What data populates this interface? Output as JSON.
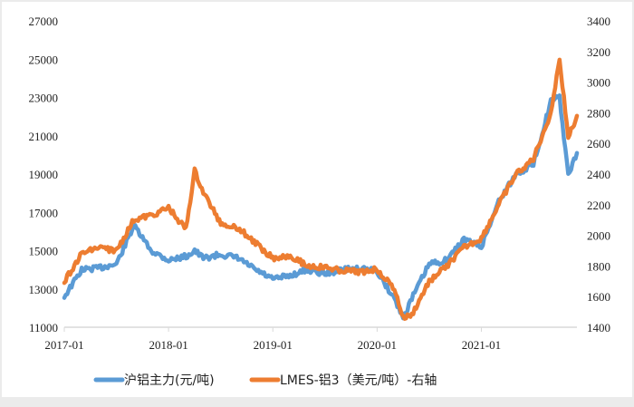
{
  "chart_data": {
    "type": "line",
    "title": "",
    "xlabel": "",
    "ylabel_left": "",
    "ylabel_right": "",
    "x_ticks": [
      "2017-01",
      "2018-01",
      "2019-01",
      "2020-01",
      "2021-01"
    ],
    "y_left": {
      "ticks": [
        11000,
        13000,
        15000,
        17000,
        19000,
        21000,
        23000,
        25000,
        27000
      ],
      "ylim": [
        11000,
        27000
      ]
    },
    "y_right": {
      "ticks": [
        1400,
        1600,
        1800,
        2000,
        2200,
        2400,
        2600,
        2800,
        3000,
        3200,
        3400
      ],
      "ylim": [
        1400,
        3400
      ]
    },
    "grid": false,
    "legend_position": "bottom",
    "x": [
      "2017-01",
      "2017-03",
      "2017-05",
      "2017-07",
      "2017-09",
      "2017-11",
      "2018-01",
      "2018-03",
      "2018-04",
      "2018-05",
      "2018-07",
      "2018-09",
      "2018-11",
      "2019-01",
      "2019-03",
      "2019-05",
      "2019-07",
      "2019-09",
      "2019-11",
      "2020-01",
      "2020-03",
      "2020-04",
      "2020-05",
      "2020-07",
      "2020-09",
      "2020-11",
      "2021-01",
      "2021-03",
      "2021-05",
      "2021-07",
      "2021-09",
      "2021-10",
      "2021-11",
      "2021-12"
    ],
    "series": [
      {
        "name": "沪铝主力(元/吨)",
        "axis": "left",
        "color": "#5b9bd5",
        "values": [
          12600,
          14000,
          14100,
          14300,
          16300,
          15000,
          14500,
          14700,
          15000,
          14600,
          14800,
          14600,
          14000,
          13500,
          13700,
          14000,
          13800,
          14000,
          14100,
          13900,
          12500,
          11500,
          12500,
          14300,
          14500,
          15600,
          15200,
          17600,
          19000,
          19500,
          22800,
          23000,
          18900,
          20100
        ]
      },
      {
        "name": "LMES-铝3（美元/吨）-右轴",
        "axis": "right",
        "color": "#ed7d31",
        "values": [
          1700,
          1880,
          1920,
          1900,
          2100,
          2130,
          2180,
          2040,
          2420,
          2280,
          2080,
          2050,
          1950,
          1850,
          1870,
          1800,
          1790,
          1770,
          1760,
          1780,
          1650,
          1460,
          1480,
          1700,
          1800,
          1920,
          1980,
          2200,
          2400,
          2500,
          2800,
          3150,
          2640,
          2780
        ]
      }
    ]
  },
  "axes": {
    "left_ticks": [
      "27000",
      "25000",
      "23000",
      "21000",
      "19000",
      "17000",
      "15000",
      "13000",
      "11000"
    ],
    "right_ticks": [
      "3400",
      "3200",
      "3000",
      "2800",
      "2600",
      "2400",
      "2200",
      "2000",
      "1800",
      "1600",
      "1400"
    ],
    "x_ticks": [
      "2017-01",
      "2018-01",
      "2019-01",
      "2020-01",
      "2021-01"
    ]
  },
  "legend": {
    "items": [
      {
        "label": "沪铝主力(元/吨)",
        "color": "#5b9bd5"
      },
      {
        "label": "LMES-铝3（美元/吨）-右轴",
        "color": "#ed7d31"
      }
    ]
  }
}
